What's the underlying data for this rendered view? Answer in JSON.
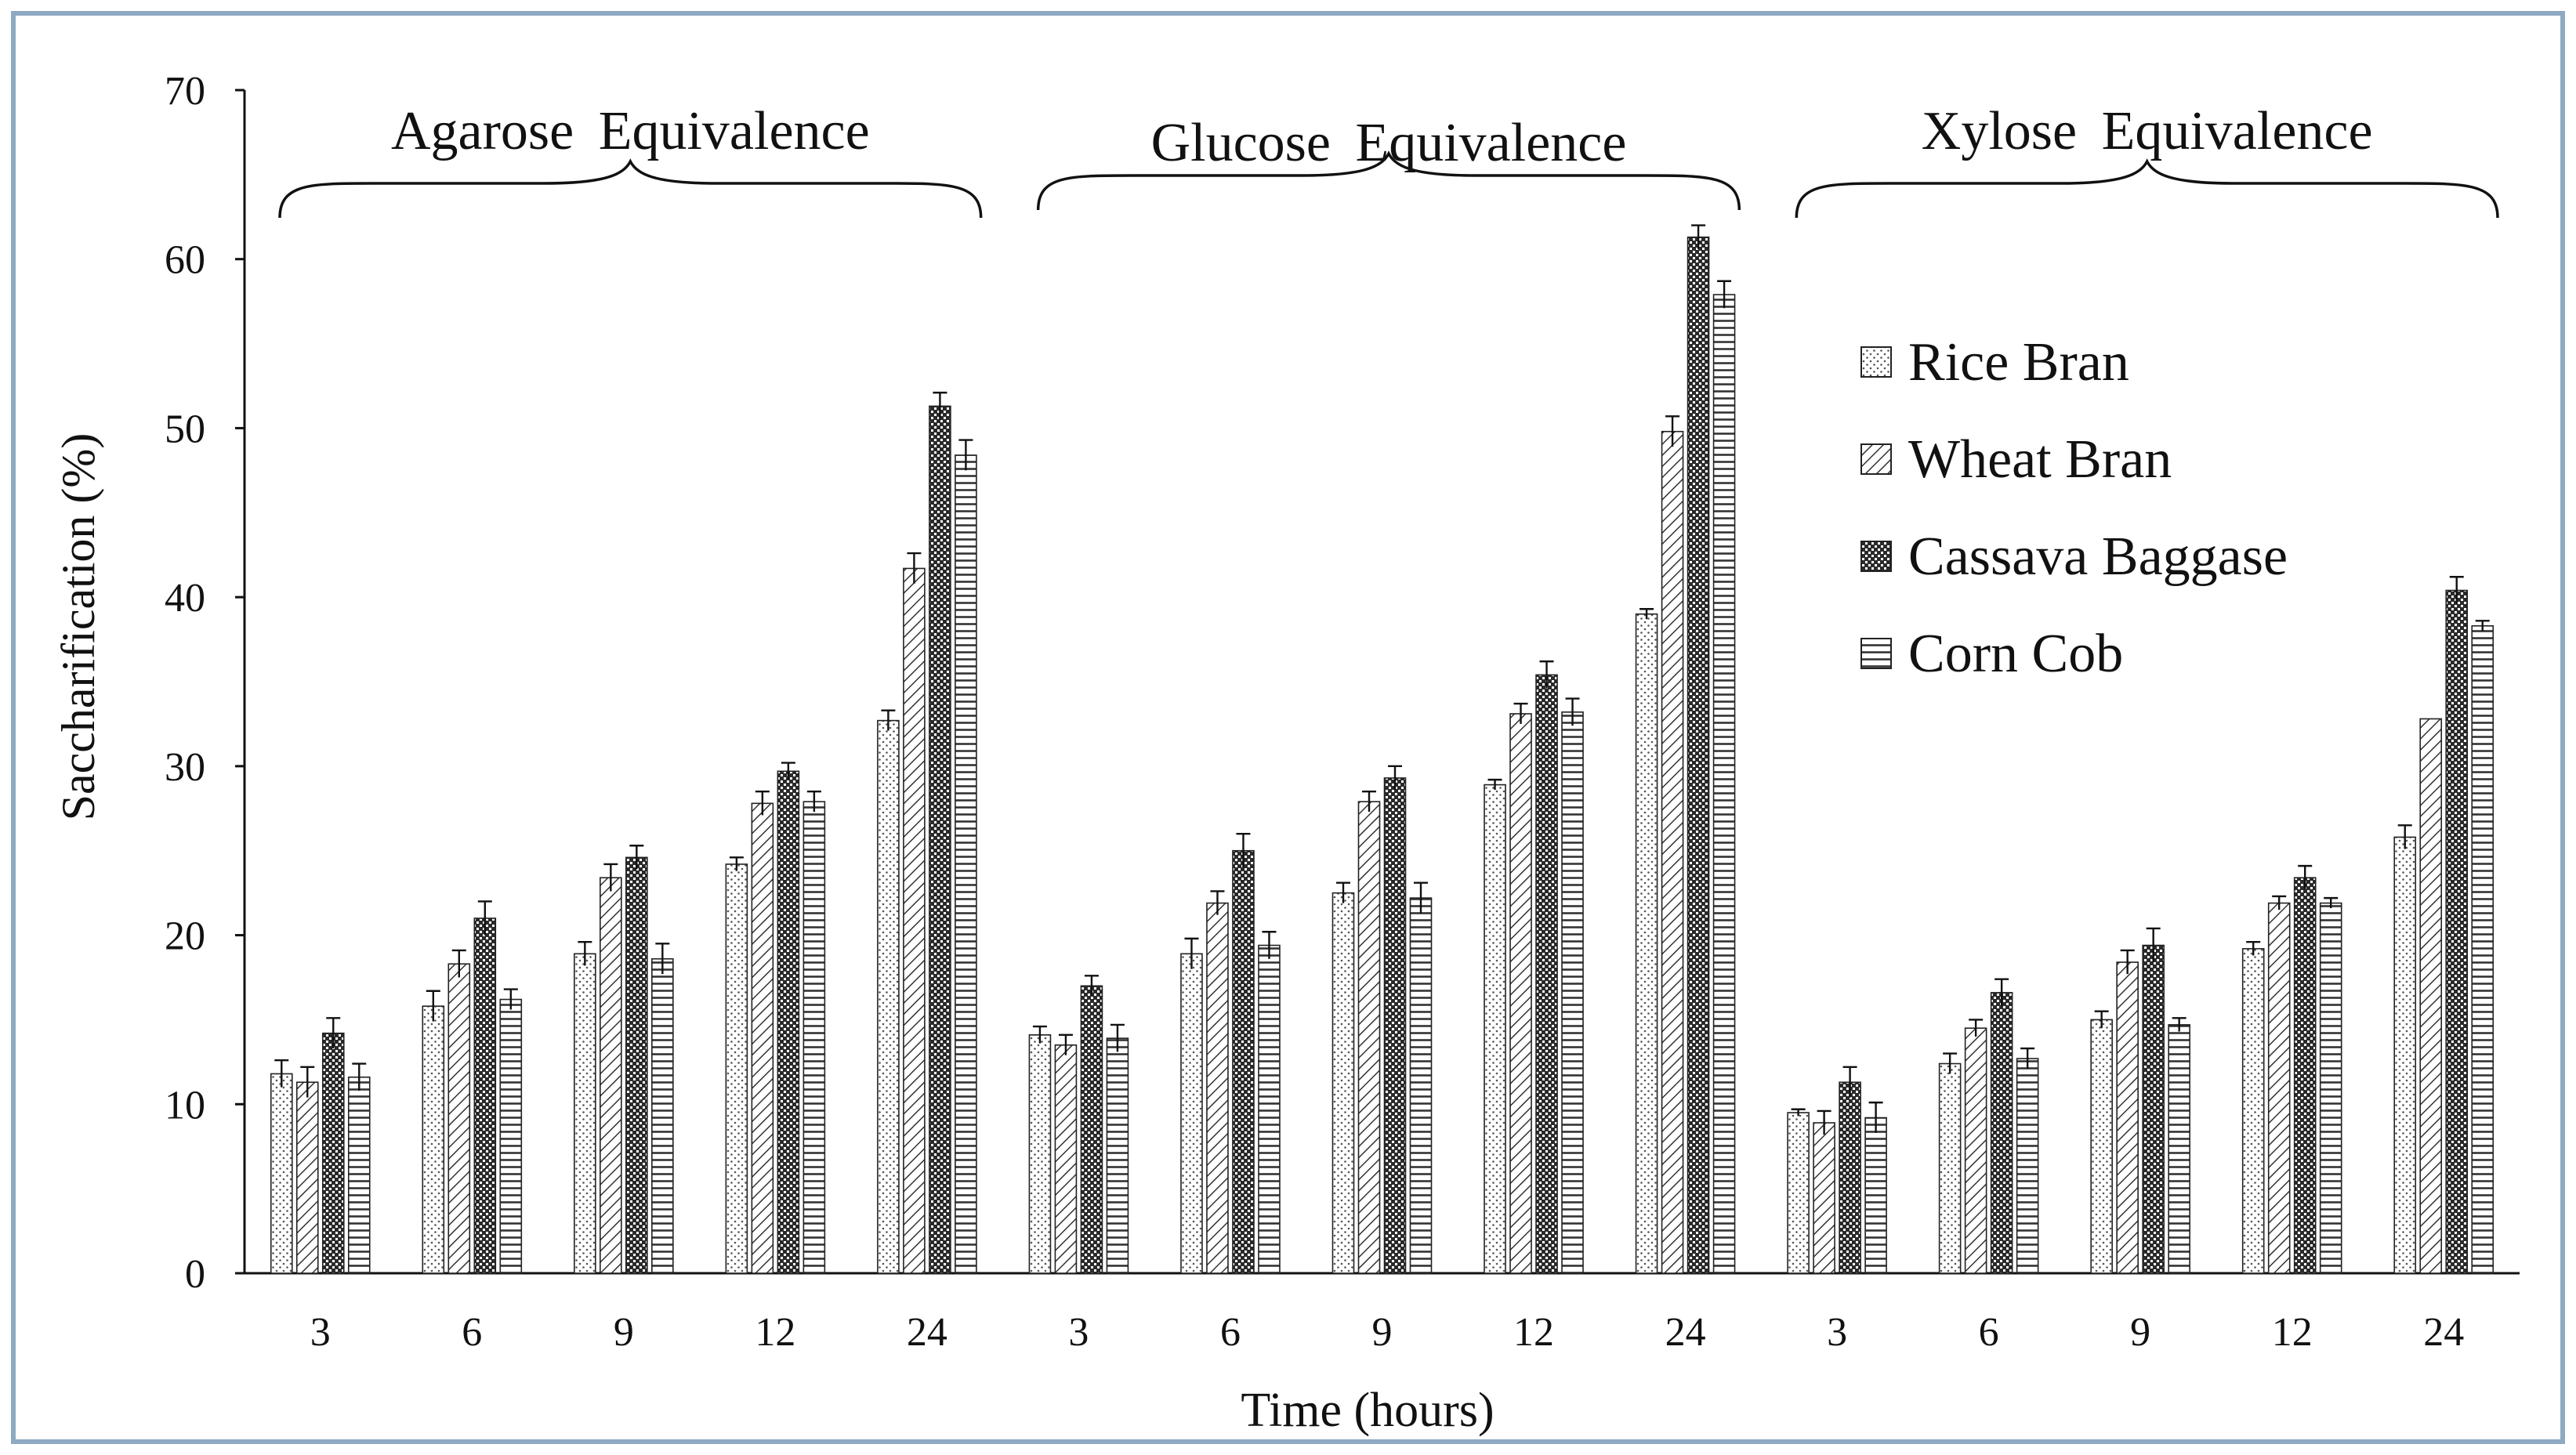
{
  "chart_data": {
    "type": "bar",
    "title": "",
    "ylabel": "Saccharification (%)",
    "xlabel": "Time (hours)",
    "ylim": [
      0,
      70
    ],
    "yticks": [
      0,
      10,
      20,
      30,
      40,
      50,
      60,
      70
    ],
    "categories": [
      "3",
      "6",
      "9",
      "12",
      "24"
    ],
    "legend_position": "right",
    "colors": {
      "axis": "#111111",
      "frame": "#8fa9c2",
      "bar_fill": "#ffffff",
      "stroke": "#222222"
    },
    "groups": [
      {
        "name": "Agarose Equivalence",
        "series": [
          {
            "name": "Rice Bran",
            "values": [
              11.8,
              15.8,
              18.9,
              24.2,
              32.7
            ],
            "errors": [
              0.8,
              0.9,
              0.7,
              0.4,
              0.6
            ]
          },
          {
            "name": "Wheat Bran",
            "values": [
              11.3,
              18.3,
              23.4,
              27.8,
              41.7
            ],
            "errors": [
              0.9,
              0.8,
              0.8,
              0.7,
              0.9
            ]
          },
          {
            "name": "Cassava Baggase",
            "values": [
              14.2,
              21.0,
              24.6,
              29.7,
              51.3
            ],
            "errors": [
              0.9,
              1.0,
              0.7,
              0.5,
              0.8
            ]
          },
          {
            "name": "Corn Cob",
            "values": [
              11.6,
              16.2,
              18.6,
              27.9,
              48.4
            ],
            "errors": [
              0.8,
              0.6,
              0.9,
              0.6,
              0.9
            ]
          }
        ]
      },
      {
        "name": "Glucose Equivalence",
        "series": [
          {
            "name": "Rice Bran",
            "values": [
              14.1,
              18.9,
              22.5,
              28.9,
              39.0
            ],
            "errors": [
              0.5,
              0.9,
              0.6,
              0.3,
              0.3
            ]
          },
          {
            "name": "Wheat Bran",
            "values": [
              13.5,
              21.9,
              27.9,
              33.1,
              49.8
            ],
            "errors": [
              0.6,
              0.7,
              0.6,
              0.6,
              0.9
            ]
          },
          {
            "name": "Cassava Baggase",
            "values": [
              17.0,
              25.0,
              29.3,
              35.4,
              61.3
            ],
            "errors": [
              0.6,
              1.0,
              0.7,
              0.8,
              0.7
            ]
          },
          {
            "name": "Corn Cob",
            "values": [
              13.9,
              19.4,
              22.2,
              33.2,
              57.9
            ],
            "errors": [
              0.8,
              0.8,
              0.9,
              0.8,
              0.8
            ]
          }
        ]
      },
      {
        "name": "Xylose Equivalence",
        "series": [
          {
            "name": "Rice Bran",
            "values": [
              9.5,
              12.4,
              15.0,
              19.2,
              25.8
            ],
            "errors": [
              0.2,
              0.6,
              0.5,
              0.4,
              0.7
            ]
          },
          {
            "name": "Wheat Bran",
            "values": [
              8.9,
              14.5,
              18.4,
              21.9,
              32.8
            ],
            "errors": [
              0.7,
              0.5,
              0.7,
              0.4,
              0.0
            ]
          },
          {
            "name": "Cassava Baggase",
            "values": [
              11.3,
              16.6,
              19.4,
              23.4,
              40.4
            ],
            "errors": [
              0.9,
              0.8,
              1.0,
              0.7,
              0.8
            ]
          },
          {
            "name": "Corn Cob",
            "values": [
              9.2,
              12.7,
              14.7,
              21.9,
              38.3
            ],
            "errors": [
              0.9,
              0.6,
              0.4,
              0.3,
              0.3
            ]
          }
        ]
      }
    ],
    "legend": [
      "Rice Bran",
      "Wheat Bran",
      "Cassava Baggase",
      "Corn Cob"
    ]
  }
}
